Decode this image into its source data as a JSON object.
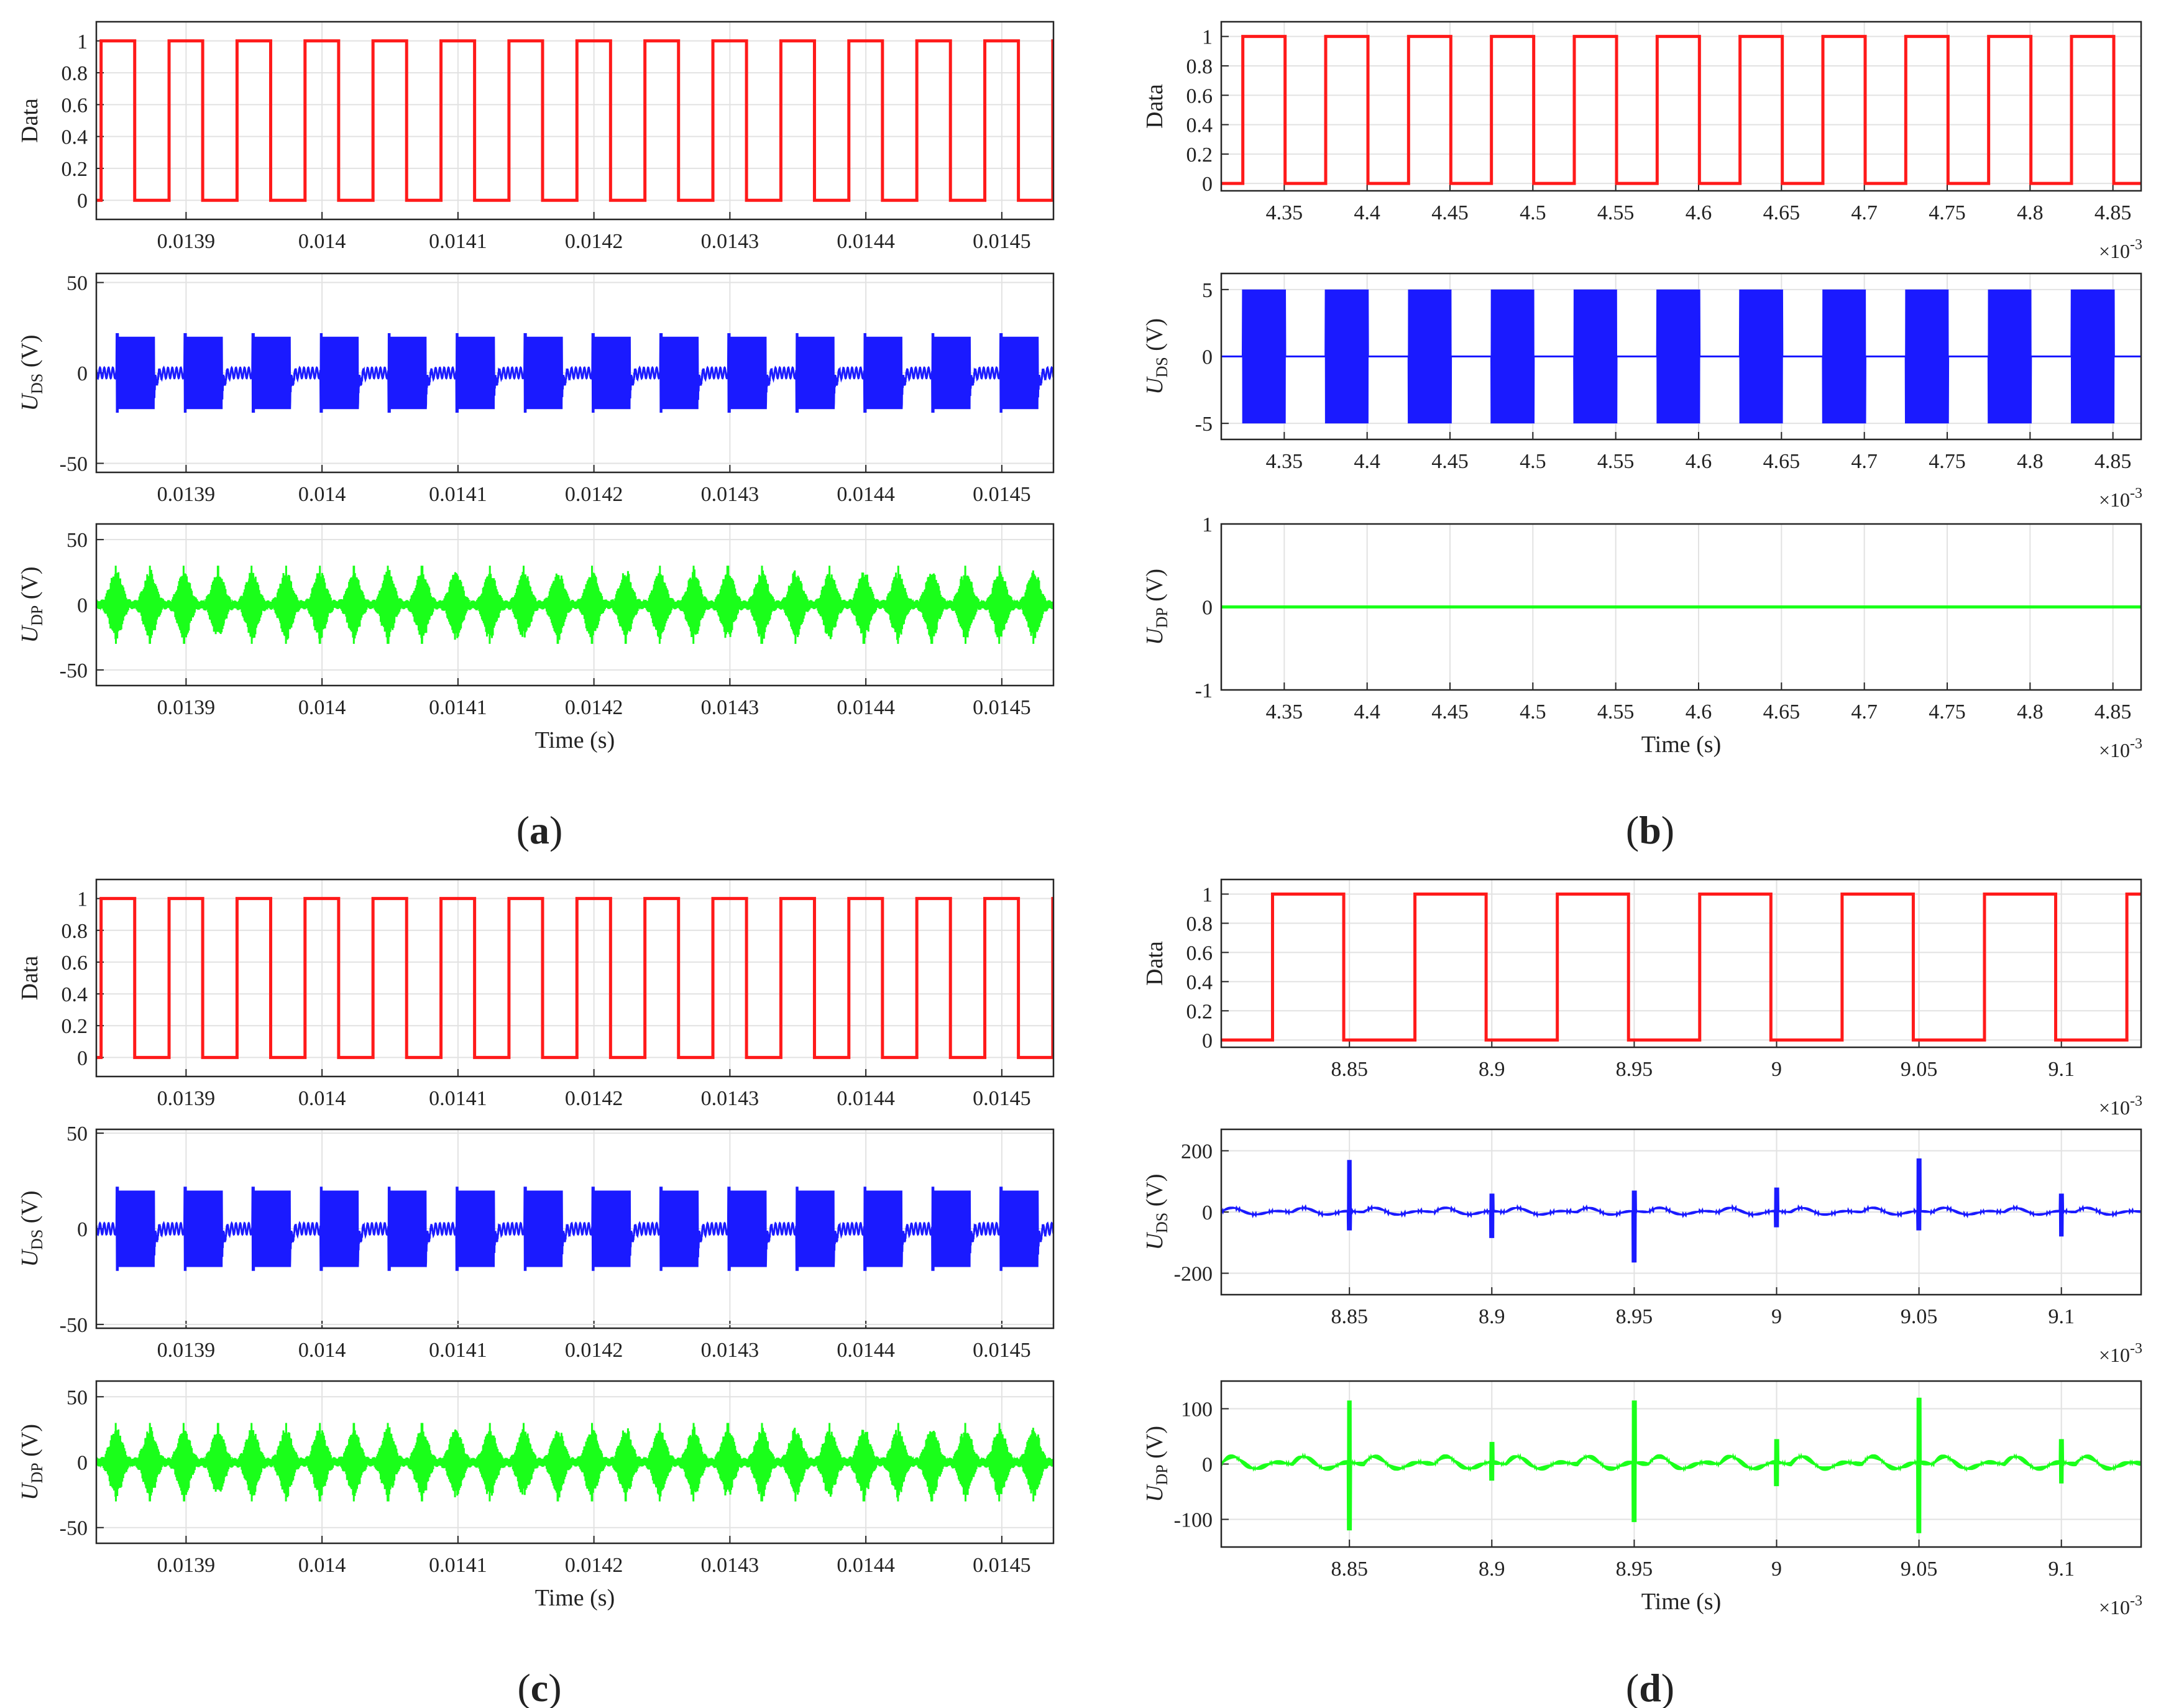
{
  "panel_labels": [
    "a",
    "b",
    "c",
    "d"
  ],
  "colors": {
    "data": "#ff1a1a",
    "uds": "#1a1aff",
    "udp": "#1aff1a",
    "grid": "#e2e2e2",
    "axes": "#262626"
  },
  "chart_data": [
    {
      "panel": "a",
      "type": "line",
      "ylabel": "Data",
      "ylim": [
        -0.12,
        1.12
      ],
      "yticks": [
        0,
        0.2,
        0.4,
        0.6,
        0.8,
        1
      ],
      "xlim": [
        0.013834,
        0.014538
      ],
      "xticks": [
        0.0139,
        0.014,
        0.0141,
        0.0142,
        0.0143,
        0.0144,
        0.0145
      ],
      "xticklabels": [
        "0.0139",
        "0.014",
        "0.0141",
        "0.0142",
        "0.0143",
        "0.0144",
        "0.0145"
      ],
      "grid": true,
      "signal": {
        "kind": "square",
        "period": 5e-05,
        "high_start": 0.0138375,
        "high_width": 2.472e-05,
        "levels": [
          0,
          1
        ]
      }
    },
    {
      "panel": "a",
      "type": "line",
      "ylabel": "U_DS (V)",
      "ylim": [
        -55,
        55
      ],
      "yticks": [
        -50,
        0,
        50
      ],
      "xlim": [
        0.013834,
        0.014538
      ],
      "xticks": [
        0.0139,
        0.014,
        0.0141,
        0.0142,
        0.0143,
        0.0144,
        0.0145
      ],
      "xticklabels": [
        "0.0139",
        "0.014",
        "0.0141",
        "0.0142",
        "0.0143",
        "0.0144",
        "0.0145"
      ],
      "grid": true,
      "signal": {
        "kind": "burst",
        "period": 5e-05,
        "burst_start": 0.01385,
        "burst_width": 2.65e-05,
        "amplitude": 20,
        "spike": 22
      }
    },
    {
      "panel": "a",
      "type": "line",
      "ylabel": "U_DP (V)",
      "xlabel": "Time (s)",
      "ylim": [
        -62,
        62
      ],
      "yticks": [
        -50,
        0,
        50
      ],
      "xlim": [
        0.013834,
        0.014538
      ],
      "xticks": [
        0.0139,
        0.014,
        0.0141,
        0.0142,
        0.0143,
        0.0144,
        0.0145
      ],
      "xticklabels": [
        "0.0139",
        "0.014",
        "0.0141",
        "0.0142",
        "0.0143",
        "0.0144",
        "0.0145"
      ],
      "grid": true,
      "signal": {
        "kind": "envelope",
        "period": 2.5e-05,
        "center": 0.0138735,
        "width": 1.9e-05,
        "amplitude": 25,
        "spike": 30
      }
    },
    {
      "panel": "b",
      "type": "line",
      "ylabel": "Data",
      "ylim": [
        -0.05,
        1.1
      ],
      "yticks": [
        0,
        0.2,
        0.4,
        0.6,
        0.8,
        1
      ],
      "xlim": [
        0.004312,
        0.004867
      ],
      "xticks": [
        0.00435,
        0.0044,
        0.00445,
        0.0045,
        0.00455,
        0.0046,
        0.00465,
        0.0047,
        0.00475,
        0.0048,
        0.00485
      ],
      "xticklabels": [
        "4.35",
        "4.4",
        "4.45",
        "4.5",
        "4.55",
        "4.6",
        "4.65",
        "4.7",
        "4.75",
        "4.8",
        "4.85"
      ],
      "x_exponent": "-3",
      "grid": true,
      "signal": {
        "kind": "square",
        "period": 5e-05,
        "high_start": 0.004325,
        "high_width": 2.55e-05,
        "levels": [
          0,
          1
        ]
      }
    },
    {
      "panel": "b",
      "type": "line",
      "ylabel": "U_DS (V)",
      "ylim": [
        -6.2,
        6.2
      ],
      "yticks": [
        -5,
        0,
        5
      ],
      "xlim": [
        0.004312,
        0.004867
      ],
      "xticks": [
        0.00435,
        0.0044,
        0.00445,
        0.0045,
        0.00455,
        0.0046,
        0.00465,
        0.0047,
        0.00475,
        0.0048,
        0.00485
      ],
      "xticklabels": [
        "4.35",
        "4.4",
        "4.45",
        "4.5",
        "4.55",
        "4.6",
        "4.65",
        "4.7",
        "4.75",
        "4.8",
        "4.85"
      ],
      "x_exponent": "-3",
      "grid": true,
      "signal": {
        "kind": "block",
        "period": 5e-05,
        "burst_start": 0.004325,
        "burst_width": 2.55e-05,
        "amplitude": 5
      }
    },
    {
      "panel": "b",
      "type": "line",
      "ylabel": "U_DP (V)",
      "xlabel": "Time (s)",
      "ylim": [
        -1,
        1
      ],
      "yticks": [
        -1,
        0,
        1
      ],
      "xlim": [
        0.004312,
        0.004867
      ],
      "xticks": [
        0.00435,
        0.0044,
        0.00445,
        0.0045,
        0.00455,
        0.0046,
        0.00465,
        0.0047,
        0.00475,
        0.0048,
        0.00485
      ],
      "xticklabels": [
        "4.35",
        "4.4",
        "4.45",
        "4.5",
        "4.55",
        "4.6",
        "4.65",
        "4.7",
        "4.75",
        "4.8",
        "4.85"
      ],
      "x_exponent": "-3",
      "grid": true,
      "signal": {
        "kind": "flat",
        "value": 0
      }
    },
    {
      "panel": "c",
      "type": "line",
      "ylabel": "Data",
      "ylim": [
        -0.12,
        1.12
      ],
      "yticks": [
        0,
        0.2,
        0.4,
        0.6,
        0.8,
        1
      ],
      "xlim": [
        0.013834,
        0.014538
      ],
      "xticks": [
        0.0139,
        0.014,
        0.0141,
        0.0142,
        0.0143,
        0.0144,
        0.0145
      ],
      "xticklabels": [
        "0.0139",
        "0.014",
        "0.0141",
        "0.0142",
        "0.0143",
        "0.0144",
        "0.0145"
      ],
      "grid": true,
      "signal": {
        "kind": "square",
        "period": 5e-05,
        "high_start": 0.0138375,
        "high_width": 2.472e-05,
        "levels": [
          0,
          1
        ]
      }
    },
    {
      "panel": "c",
      "type": "line",
      "ylabel": "U_DS (V)",
      "ylim": [
        -52,
        52
      ],
      "yticks": [
        -50,
        0,
        50
      ],
      "xlim": [
        0.013834,
        0.014538
      ],
      "xticks": [
        0.0139,
        0.014,
        0.0141,
        0.0142,
        0.0143,
        0.0144,
        0.0145
      ],
      "xticklabels": [
        "0.0139",
        "0.014",
        "0.0141",
        "0.0142",
        "0.0143",
        "0.0144",
        "0.0145"
      ],
      "grid": true,
      "signal": {
        "kind": "burst",
        "period": 5e-05,
        "burst_start": 0.01385,
        "burst_width": 2.65e-05,
        "amplitude": 20,
        "spike": 22
      }
    },
    {
      "panel": "c",
      "type": "line",
      "ylabel": "U_DP (V)",
      "xlabel": "Time (s)",
      "ylim": [
        -62,
        62
      ],
      "yticks": [
        -50,
        0,
        50
      ],
      "xlim": [
        0.013834,
        0.014538
      ],
      "xticks": [
        0.0139,
        0.014,
        0.0141,
        0.0142,
        0.0143,
        0.0144,
        0.0145
      ],
      "xticklabels": [
        "0.0139",
        "0.014",
        "0.0141",
        "0.0142",
        "0.0143",
        "0.0144",
        "0.0145"
      ],
      "grid": true,
      "signal": {
        "kind": "envelope",
        "period": 2.5e-05,
        "center": 0.0138735,
        "width": 1.9e-05,
        "amplitude": 25,
        "spike": 30
      }
    },
    {
      "panel": "d",
      "type": "line",
      "ylabel": "Data",
      "ylim": [
        -0.05,
        1.1
      ],
      "yticks": [
        0,
        0.2,
        0.4,
        0.6,
        0.8,
        1
      ],
      "xlim": [
        0.008805,
        0.009128
      ],
      "xticks": [
        0.00885,
        0.0089,
        0.00895,
        0.009,
        0.00905,
        0.0091
      ],
      "xticklabels": [
        "8.85",
        "8.9",
        "8.95",
        "9",
        "9.05",
        "9.1"
      ],
      "x_exponent": "-3",
      "grid": true,
      "signal": {
        "kind": "square",
        "period": 5e-05,
        "high_start": 0.008823,
        "high_width": 2.5e-05,
        "levels": [
          0,
          1
        ]
      }
    },
    {
      "panel": "d",
      "type": "line",
      "ylabel": "U_DS (V)",
      "ylim": [
        -270,
        270
      ],
      "yticks": [
        -200,
        0,
        200
      ],
      "xlim": [
        0.008805,
        0.009128
      ],
      "xticks": [
        0.00885,
        0.0089,
        0.00895,
        0.009,
        0.00905,
        0.0091
      ],
      "xticklabels": [
        "8.85",
        "8.9",
        "8.95",
        "9",
        "9.05",
        "9.1"
      ],
      "x_exponent": "-3",
      "grid": true,
      "signal": {
        "kind": "ringing",
        "period": 2.5e-05,
        "amplitude": 18,
        "spikes": [
          {
            "x": 0.00885,
            "up": 170,
            "down": -60
          },
          {
            "x": 0.0089,
            "up": 60,
            "down": -85
          },
          {
            "x": 0.00895,
            "up": 70,
            "down": -165
          },
          {
            "x": 0.009,
            "up": 80,
            "down": -50
          },
          {
            "x": 0.00905,
            "up": 175,
            "down": -60
          },
          {
            "x": 0.0091,
            "up": 60,
            "down": -80
          }
        ]
      }
    },
    {
      "panel": "d",
      "type": "line",
      "ylabel": "U_DP (V)",
      "xlabel": "Time (s)",
      "ylim": [
        -150,
        150
      ],
      "yticks": [
        -100,
        0,
        100
      ],
      "xlim": [
        0.008805,
        0.009128
      ],
      "xticks": [
        0.00885,
        0.0089,
        0.00895,
        0.009,
        0.00905,
        0.0091
      ],
      "xticklabels": [
        "8.85",
        "8.9",
        "8.95",
        "9",
        "9.05",
        "9.1"
      ],
      "x_exponent": "-3",
      "grid": true,
      "signal": {
        "kind": "ringing",
        "period": 2.5e-05,
        "amplitude": 18,
        "spikes": [
          {
            "x": 0.00885,
            "up": 115,
            "down": -120
          },
          {
            "x": 0.0089,
            "up": 40,
            "down": -30
          },
          {
            "x": 0.00895,
            "up": 115,
            "down": -105
          },
          {
            "x": 0.009,
            "up": 45,
            "down": -40
          },
          {
            "x": 0.00905,
            "up": 120,
            "down": -125
          },
          {
            "x": 0.0091,
            "up": 45,
            "down": -35
          }
        ]
      }
    }
  ]
}
